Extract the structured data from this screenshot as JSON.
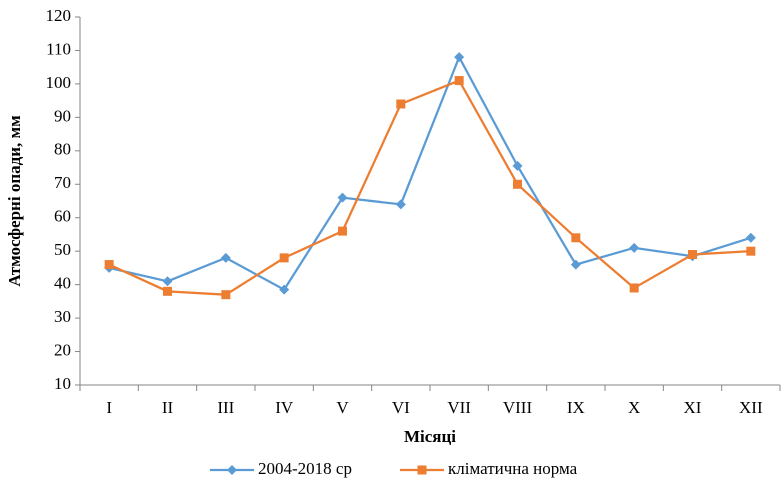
{
  "chart_data": {
    "type": "line",
    "y_label": "Атмосферні опади, мм",
    "x_label": "Місяці",
    "categories": [
      "I",
      "II",
      "III",
      "IV",
      "V",
      "VI",
      "VII",
      "VIII",
      "IX",
      "X",
      "XI",
      "XII"
    ],
    "series": [
      {
        "name": "2004-2018 ср",
        "color": "#5b9bd5",
        "marker": "diamond",
        "values": [
          45,
          41,
          48,
          38.5,
          66,
          64,
          108,
          75.5,
          46,
          51,
          48.5,
          54
        ]
      },
      {
        "name": "кліматична норма",
        "color": "#ed7d31",
        "marker": "square",
        "values": [
          46,
          38,
          37,
          48,
          56,
          94,
          101,
          70,
          54,
          39,
          49,
          50
        ]
      }
    ],
    "ylim": [
      10,
      120
    ],
    "yticks": [
      10,
      20,
      30,
      40,
      50,
      60,
      70,
      80,
      90,
      100,
      110,
      120
    ],
    "grid": false,
    "legend": "bottom"
  }
}
